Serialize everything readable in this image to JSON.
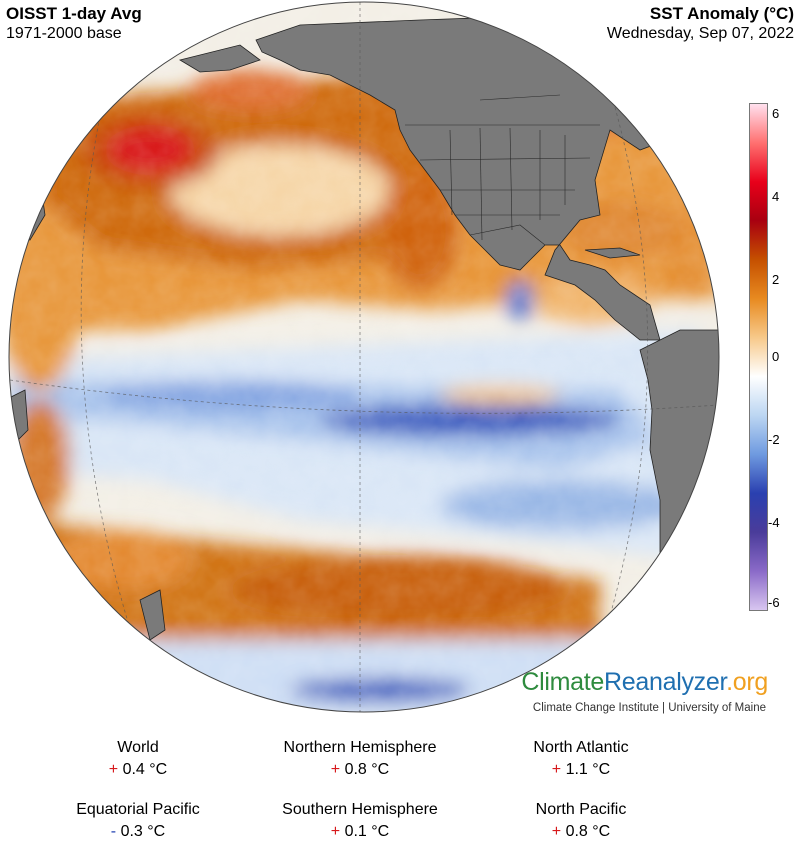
{
  "header": {
    "dataset": "OISST 1-day Avg",
    "base": "1971-2000 base",
    "variable": "SST Anomaly (°C)",
    "date": "Wednesday, Sep 07, 2022"
  },
  "colorbar": {
    "ticks": [
      "6",
      "4",
      "2",
      "0",
      "-2",
      "-4",
      "-6"
    ],
    "range": [
      -6,
      6
    ],
    "colors": [
      "#ffe0ee",
      "#ff7070",
      "#e8001a",
      "#a80010",
      "#c55000",
      "#e88a20",
      "#f7c98a",
      "#ffffff",
      "#bcd6f2",
      "#6f9ae0",
      "#2a40b0",
      "#4a3c9a",
      "#8a6ac8",
      "#d8c6f0"
    ]
  },
  "branding": {
    "logo_climate": "Climate",
    "logo_reanalyzer": "Reanalyzer",
    "logo_org": ".org",
    "institution": "Climate Change Institute | University of Maine"
  },
  "stats": [
    {
      "label": "World",
      "sign": "+",
      "value": "0.4 °C"
    },
    {
      "label": "Northern Hemisphere",
      "sign": "+",
      "value": "0.8 °C"
    },
    {
      "label": "North Atlantic",
      "sign": "+",
      "value": "1.1 °C"
    },
    {
      "label": "Equatorial Pacific",
      "sign": "-",
      "value": "0.3 °C"
    },
    {
      "label": "Southern Hemisphere",
      "sign": "+",
      "value": "0.1 °C"
    },
    {
      "label": "North Pacific",
      "sign": "+",
      "value": "0.8 °C"
    }
  ]
}
